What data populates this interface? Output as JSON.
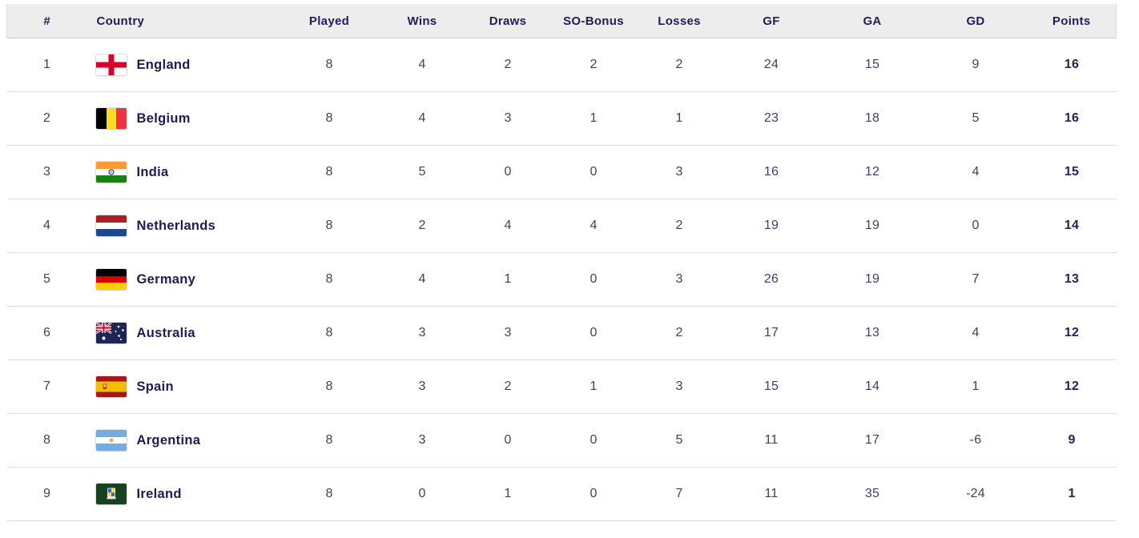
{
  "table": {
    "columns": [
      {
        "key": "rank",
        "label": "#"
      },
      {
        "key": "country",
        "label": "Country"
      },
      {
        "key": "played",
        "label": "Played"
      },
      {
        "key": "wins",
        "label": "Wins"
      },
      {
        "key": "draws",
        "label": "Draws"
      },
      {
        "key": "so_bonus",
        "label": "SO-Bonus"
      },
      {
        "key": "losses",
        "label": "Losses"
      },
      {
        "key": "gf",
        "label": "GF"
      },
      {
        "key": "ga",
        "label": "GA"
      },
      {
        "key": "gd",
        "label": "GD"
      },
      {
        "key": "points",
        "label": "Points"
      }
    ],
    "rows": [
      {
        "rank": "1",
        "country": "England",
        "flag": "england-flag-icon",
        "played": "8",
        "wins": "4",
        "draws": "2",
        "so_bonus": "2",
        "losses": "2",
        "gf": "24",
        "ga": "15",
        "gd": "9",
        "points": "16"
      },
      {
        "rank": "2",
        "country": "Belgium",
        "flag": "belgium-flag-icon",
        "played": "8",
        "wins": "4",
        "draws": "3",
        "so_bonus": "1",
        "losses": "1",
        "gf": "23",
        "ga": "18",
        "gd": "5",
        "points": "16"
      },
      {
        "rank": "3",
        "country": "India",
        "flag": "india-flag-icon",
        "played": "8",
        "wins": "5",
        "draws": "0",
        "so_bonus": "0",
        "losses": "3",
        "gf": "16",
        "ga": "12",
        "gd": "4",
        "points": "15"
      },
      {
        "rank": "4",
        "country": "Netherlands",
        "flag": "netherlands-flag-icon",
        "played": "8",
        "wins": "2",
        "draws": "4",
        "so_bonus": "4",
        "losses": "2",
        "gf": "19",
        "ga": "19",
        "gd": "0",
        "points": "14"
      },
      {
        "rank": "5",
        "country": "Germany",
        "flag": "germany-flag-icon",
        "played": "8",
        "wins": "4",
        "draws": "1",
        "so_bonus": "0",
        "losses": "3",
        "gf": "26",
        "ga": "19",
        "gd": "7",
        "points": "13"
      },
      {
        "rank": "6",
        "country": "Australia",
        "flag": "australia-flag-icon",
        "played": "8",
        "wins": "3",
        "draws": "3",
        "so_bonus": "0",
        "losses": "2",
        "gf": "17",
        "ga": "13",
        "gd": "4",
        "points": "12"
      },
      {
        "rank": "7",
        "country": "Spain",
        "flag": "spain-flag-icon",
        "played": "8",
        "wins": "3",
        "draws": "2",
        "so_bonus": "1",
        "losses": "3",
        "gf": "15",
        "ga": "14",
        "gd": "1",
        "points": "12"
      },
      {
        "rank": "8",
        "country": "Argentina",
        "flag": "argentina-flag-icon",
        "played": "8",
        "wins": "3",
        "draws": "0",
        "so_bonus": "0",
        "losses": "5",
        "gf": "11",
        "ga": "17",
        "gd": "-6",
        "points": "9"
      },
      {
        "rank": "9",
        "country": "Ireland",
        "flag": "ireland-flag-icon",
        "played": "8",
        "wins": "0",
        "draws": "1",
        "so_bonus": "0",
        "losses": "7",
        "gf": "11",
        "ga": "35",
        "gd": "-24",
        "points": "1"
      }
    ]
  },
  "colors": {
    "header_bg": "#ededed",
    "header_text": "#1e1e5a",
    "cell_text": "#3f3f66",
    "country_text": "#1c1c57",
    "points_text": "#23235b",
    "row_divider": "#dcdcdc"
  }
}
